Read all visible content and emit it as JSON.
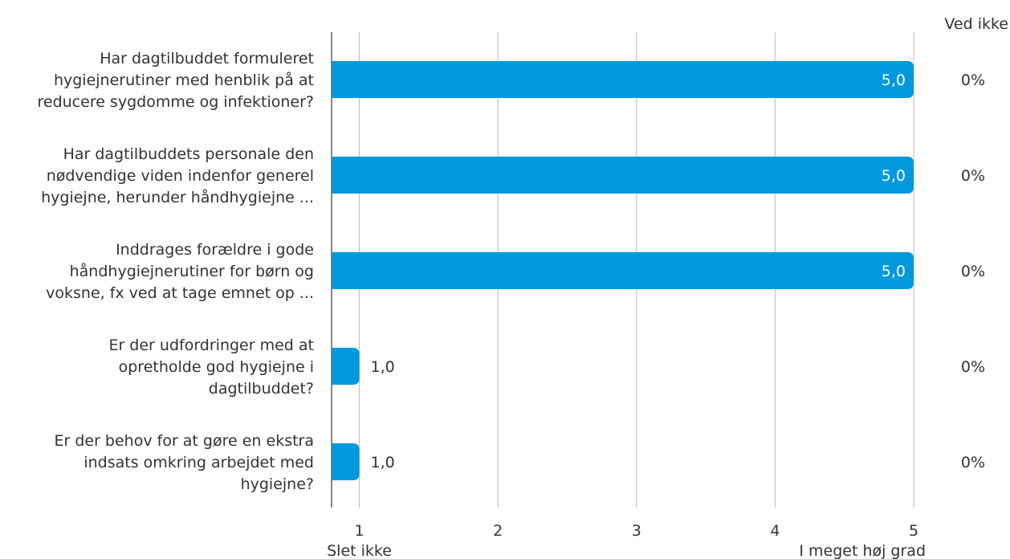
{
  "chart_data": {
    "type": "bar",
    "orientation": "horizontal",
    "categories": [
      [
        "Har dagtilbuddet formuleret",
        "hygiejnerutiner med henblik på at",
        "reducere sygdomme og infektioner?"
      ],
      [
        "Har dagtilbuddets personale den",
        "nødvendige viden indenfor generel",
        "hygiejne, herunder håndhygiejne ..."
      ],
      [
        "Inddrages forældre i gode",
        "håndhygiejnerutiner for børn og",
        "voksne, fx ved at tage emnet op ..."
      ],
      [
        "Er der udfordringer med at",
        "opretholde god hygiejne i",
        "dagtilbuddet?"
      ],
      [
        "Er der behov for at gøre en ekstra",
        "indsats omkring arbejdet med",
        "hygiejne?"
      ]
    ],
    "values": [
      5.0,
      5.0,
      5.0,
      1.0,
      1.0
    ],
    "value_labels": [
      "5,0",
      "5,0",
      "5,0",
      "1,0",
      "1,0"
    ],
    "xlim": [
      0.8,
      5
    ],
    "x_ticks": [
      1,
      2,
      3,
      4,
      5
    ],
    "x_tick_labels": [
      "1",
      "2",
      "3",
      "4",
      "5"
    ],
    "x_anchor_labels": {
      "low": "Slet ikke",
      "high": "I meget høj grad"
    },
    "right_column": {
      "header": "Ved ikke",
      "values": [
        "0%",
        "0%",
        "0%",
        "0%",
        "0%"
      ]
    },
    "grid": true,
    "bar_color": "#0099dd",
    "grid_color": "#bbbbbb",
    "axis_color": "#888888",
    "text_color": "#333333"
  }
}
